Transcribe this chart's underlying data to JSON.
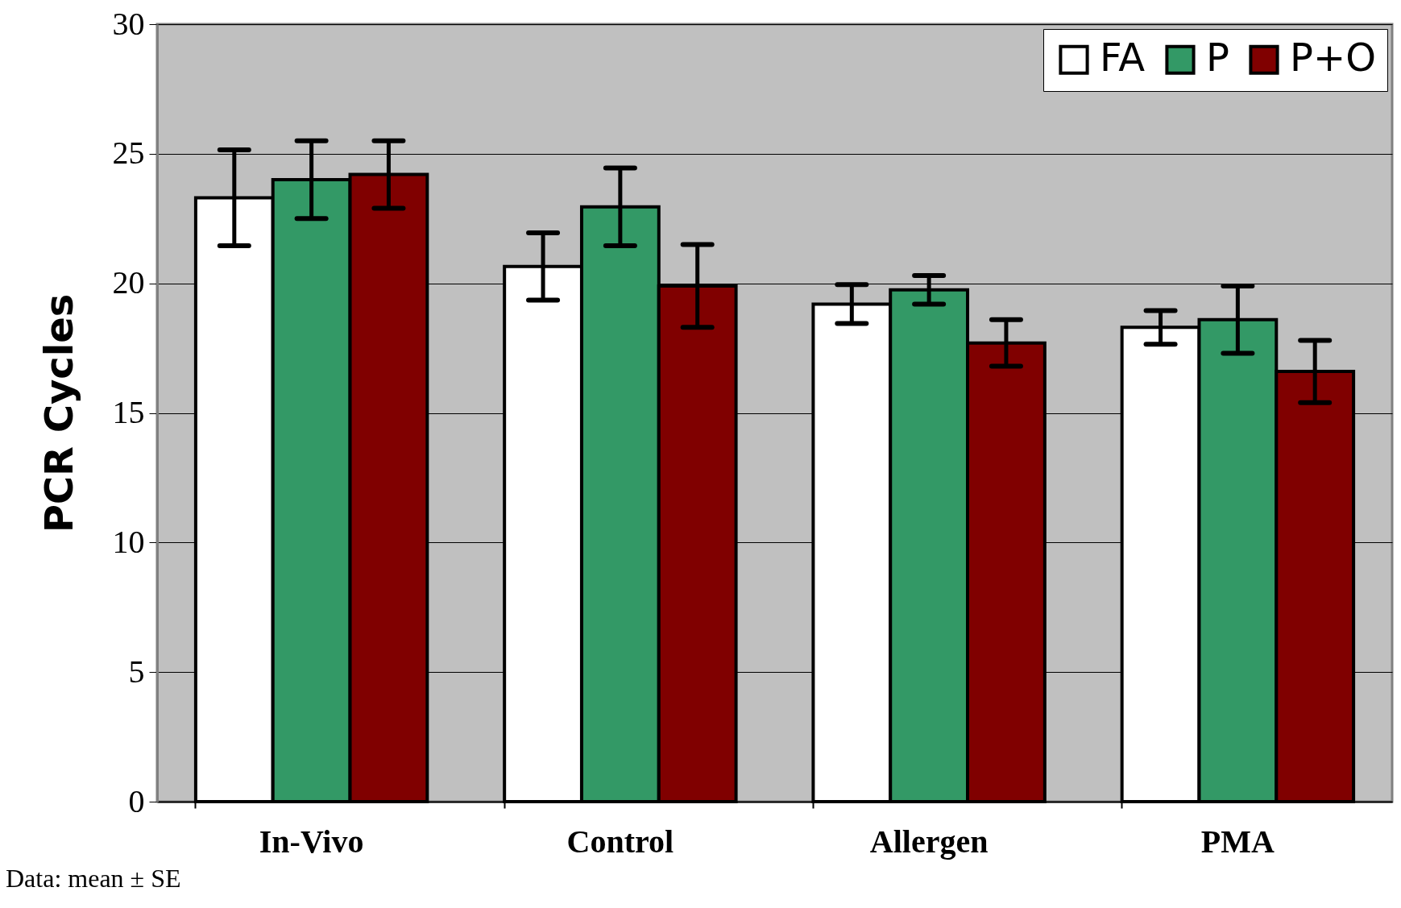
{
  "chart_data": {
    "type": "bar",
    "ylabel": "PCR Cycles",
    "categories": [
      "In-Vivo",
      "Control",
      "Allergen",
      "PMA"
    ],
    "series": [
      {
        "name": "FA",
        "color": "#ffffff",
        "values": [
          23.3,
          20.65,
          19.2,
          18.3
        ],
        "errors": [
          1.85,
          1.3,
          0.75,
          0.65
        ]
      },
      {
        "name": "P",
        "color": "#339966",
        "values": [
          24.0,
          22.95,
          19.75,
          18.6
        ],
        "errors": [
          1.5,
          1.5,
          0.55,
          1.3
        ]
      },
      {
        "name": "P+O",
        "color": "#800000",
        "values": [
          24.2,
          19.9,
          17.7,
          16.6
        ],
        "errors": [
          1.3,
          1.6,
          0.9,
          1.2
        ]
      }
    ],
    "ylim": [
      0,
      30
    ],
    "yticks": [
      0,
      5,
      10,
      15,
      20,
      25,
      30
    ],
    "grid": "y",
    "legend": "top right",
    "annotations": [
      "Data: mean ± SE"
    ]
  }
}
